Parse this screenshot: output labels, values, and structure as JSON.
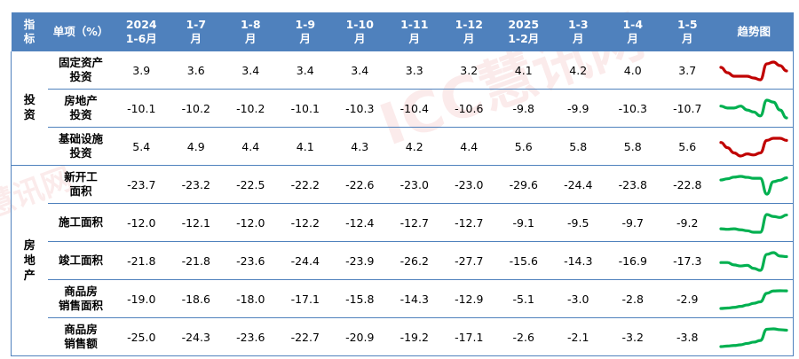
{
  "watermark": "ICC慧讯网",
  "header": {
    "category": "指\n标",
    "item": "单项（%）",
    "periods": [
      "2024\n1-6月",
      "1-7\n月",
      "1-8\n月",
      "1-9\n月",
      "1-10\n月",
      "1-11\n月",
      "1-12\n月",
      "2025\n1-2月",
      "1-3\n月",
      "1-4\n月",
      "1-5\n月"
    ],
    "trend": "趋势图"
  },
  "colors": {
    "header_bg": "#4f81bd",
    "up_trend": "#c00000",
    "down_trend": "#00b050",
    "border": "#4f81bd"
  },
  "chart_data": {
    "type": "table",
    "groups": [
      {
        "name": "投\n资",
        "rows": [
          {
            "item": "固定资产\n投资",
            "values": [
              "3.9",
              "3.6",
              "3.4",
              "3.4",
              "3.4",
              "3.3",
              "3.2",
              "4.1",
              "4.2",
              "4.0",
              "3.7"
            ],
            "trend_color": "#c00000"
          },
          {
            "item": "房地产\n投资",
            "values": [
              "-10.1",
              "-10.2",
              "-10.2",
              "-10.1",
              "-10.3",
              "-10.4",
              "-10.6",
              "-9.8",
              "-9.9",
              "-10.3",
              "-10.7"
            ],
            "trend_color": "#00b050"
          },
          {
            "item": "基础设施\n投资",
            "values": [
              "5.4",
              "4.9",
              "4.4",
              "4.1",
              "4.3",
              "4.2",
              "4.4",
              "5.6",
              "5.8",
              "5.8",
              "5.6"
            ],
            "trend_color": "#c00000"
          }
        ]
      },
      {
        "name": "房\n地\n产",
        "rows": [
          {
            "item": "新开工\n面积",
            "values": [
              "-23.7",
              "-23.2",
              "-22.5",
              "-22.2",
              "-22.6",
              "-23.0",
              "-23.0",
              "-29.6",
              "-24.4",
              "-23.8",
              "-22.8"
            ],
            "trend_color": "#00b050"
          },
          {
            "item": "施工面积",
            "values": [
              "-12.0",
              "-12.1",
              "-12.0",
              "-12.2",
              "-12.4",
              "-12.7",
              "-12.7",
              "-9.1",
              "-9.5",
              "-9.7",
              "-9.2"
            ],
            "trend_color": "#00b050"
          },
          {
            "item": "竣工面积",
            "values": [
              "-21.8",
              "-21.8",
              "-23.6",
              "-24.4",
              "-23.9",
              "-26.2",
              "-27.7",
              "-15.6",
              "-14.3",
              "-16.9",
              "-17.3"
            ],
            "trend_color": "#00b050"
          },
          {
            "item": "商品房\n销售面积",
            "values": [
              "-19.0",
              "-18.6",
              "-18.0",
              "-17.1",
              "-15.8",
              "-14.3",
              "-12.9",
              "-5.1",
              "-3.0",
              "-2.8",
              "-2.9"
            ],
            "trend_color": "#00b050"
          },
          {
            "item": "商品房\n销售额",
            "values": [
              "-25.0",
              "-24.3",
              "-23.6",
              "-22.7",
              "-20.9",
              "-19.2",
              "-17.1",
              "-2.6",
              "-2.1",
              "-3.2",
              "-3.8"
            ],
            "trend_color": "#00b050"
          }
        ]
      }
    ]
  }
}
